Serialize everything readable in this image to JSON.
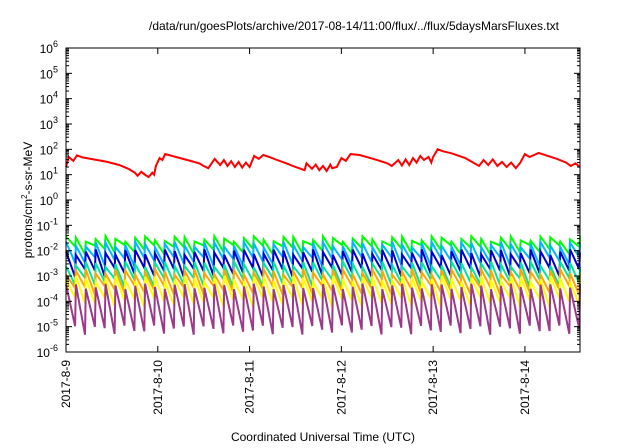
{
  "chart_data": {
    "type": "line",
    "title": "/data/run/goesPlots/archive/2017-08-14/11:00/flux/../flux/5daysMarsFluxes.txt",
    "xlabel": "Coordinated Universal Time (UTC)",
    "ylabel_main": "protons/cm",
    "ylabel_sup": "2",
    "ylabel_tail": "-s-sr-MeV",
    "yscale": "log",
    "ylim": [
      1e-06,
      1000000.0
    ],
    "xlim": [
      0,
      5.6
    ],
    "grid": false,
    "legend": "none",
    "x_ticks": [
      {
        "pos": 0,
        "label": "2017-8-9"
      },
      {
        "pos": 1,
        "label": "2017-8-10"
      },
      {
        "pos": 2,
        "label": "2017-8-11"
      },
      {
        "pos": 3,
        "label": "2017-8-12"
      },
      {
        "pos": 4,
        "label": "2017-8-13"
      },
      {
        "pos": 5,
        "label": "2017-8-14"
      }
    ],
    "y_ticks": [
      {
        "exp": -6,
        "base": "10",
        "sup": "-6"
      },
      {
        "exp": -5,
        "base": "10",
        "sup": "-5"
      },
      {
        "exp": -4,
        "base": "10",
        "sup": "-4"
      },
      {
        "exp": -3,
        "base": "10",
        "sup": "-3"
      },
      {
        "exp": -2,
        "base": "10",
        "sup": "-2"
      },
      {
        "exp": -1,
        "base": "10",
        "sup": "-1"
      },
      {
        "exp": 0,
        "base": "10",
        "sup": "0"
      },
      {
        "exp": 1,
        "base": "10",
        "sup": "1"
      },
      {
        "exp": 2,
        "base": "10",
        "sup": "2"
      },
      {
        "exp": 3,
        "base": "10",
        "sup": "3"
      },
      {
        "exp": 4,
        "base": "10",
        "sup": "4"
      },
      {
        "exp": 5,
        "base": "10",
        "sup": "5"
      },
      {
        "exp": 6,
        "base": "10",
        "sup": "6"
      }
    ],
    "series": [
      {
        "color": "#ff0000",
        "x": [
          0,
          0.03,
          0.08,
          0.12,
          0.18,
          0.3,
          0.45,
          0.58,
          0.68,
          0.75,
          0.78,
          0.82,
          0.86,
          0.9,
          0.94,
          0.96,
          0.98,
          1.02,
          1.05,
          1.08,
          1.12,
          1.2,
          1.32,
          1.45,
          1.5,
          1.55,
          1.62,
          1.68,
          1.72,
          1.76,
          1.8,
          1.84,
          1.88,
          1.92,
          1.96,
          2.0,
          2.05,
          2.1,
          2.15,
          2.2,
          2.3,
          2.4,
          2.5,
          2.6,
          2.62,
          2.68,
          2.72,
          2.76,
          2.8,
          2.84,
          2.88,
          2.9,
          2.95,
          3.0,
          3.05,
          3.1,
          3.2,
          3.35,
          3.5,
          3.55,
          3.62,
          3.66,
          3.7,
          3.74,
          3.78,
          3.82,
          3.86,
          3.9,
          3.95,
          3.98,
          4.0,
          4.05,
          4.1,
          4.2,
          4.35,
          4.45,
          4.5,
          4.55,
          4.6,
          4.65,
          4.7,
          4.75,
          4.8,
          4.85,
          4.9,
          4.95,
          5.0,
          5.05,
          5.15,
          5.25,
          5.35,
          5.45,
          5.5,
          5.55,
          5.6
        ],
        "y": [
          20,
          50,
          35,
          58,
          48,
          40,
          32,
          24,
          17,
          12,
          9,
          13,
          10,
          8,
          12,
          10,
          22,
          45,
          38,
          65,
          60,
          50,
          38,
          28,
          22,
          18,
          42,
          24,
          38,
          22,
          34,
          20,
          32,
          19,
          30,
          20,
          55,
          42,
          60,
          52,
          38,
          28,
          20,
          15,
          28,
          17,
          25,
          15,
          22,
          14,
          25,
          18,
          20,
          45,
          35,
          65,
          60,
          42,
          28,
          22,
          38,
          23,
          40,
          24,
          45,
          30,
          55,
          38,
          50,
          30,
          50,
          100,
          85,
          70,
          45,
          28,
          22,
          38,
          24,
          40,
          22,
          32,
          20,
          30,
          18,
          30,
          65,
          50,
          72,
          55,
          42,
          30,
          22,
          28,
          20
        ]
      },
      {
        "color": "#00ff00",
        "kind": "saw",
        "peak": 0.03,
        "trough": 0.012,
        "teeth": 52
      },
      {
        "color": "#00b7ff",
        "kind": "saw",
        "peak": 0.018,
        "trough": 0.004,
        "teeth": 52
      },
      {
        "color": "#0000cc",
        "kind": "saw",
        "peak": 0.009,
        "trough": 0.0015,
        "teeth": 52
      },
      {
        "color": "#00e5a0",
        "kind": "saw",
        "peak": 0.003,
        "trough": 0.0006,
        "teeth": 52
      },
      {
        "color": "#ffa500",
        "kind": "saw",
        "peak": 0.0015,
        "trough": 0.0003,
        "teeth": 52
      },
      {
        "color": "#ffff00",
        "kind": "saw",
        "peak": 0.0008,
        "trough": 0.0001,
        "teeth": 52
      },
      {
        "color": "#9b3a8a",
        "kind": "saw",
        "peak": 0.0004,
        "trough": 8e-06,
        "teeth": 52
      }
    ]
  }
}
